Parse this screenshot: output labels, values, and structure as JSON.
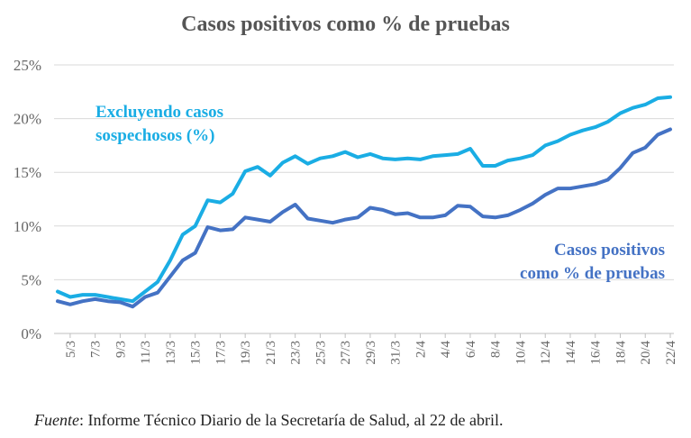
{
  "chart_data": {
    "type": "line",
    "title": "Casos positivos como % de pruebas",
    "xlabel": "",
    "ylabel": "",
    "ylim": [
      0,
      25
    ],
    "y_ticks": [
      "0%",
      "5%",
      "10%",
      "15%",
      "20%",
      "25%"
    ],
    "grid": "horizontal",
    "x": [
      "4/3",
      "5/3",
      "6/3",
      "7/3",
      "8/3",
      "9/3",
      "10/3",
      "11/3",
      "12/3",
      "13/3",
      "14/3",
      "15/3",
      "16/3",
      "17/3",
      "18/3",
      "19/3",
      "20/3",
      "21/3",
      "22/3",
      "23/3",
      "24/3",
      "25/3",
      "26/3",
      "27/3",
      "28/3",
      "29/3",
      "30/3",
      "31/3",
      "1/4",
      "2/4",
      "3/4",
      "4/4",
      "5/4",
      "6/4",
      "7/4",
      "8/4",
      "9/4",
      "10/4",
      "11/4",
      "12/4",
      "13/4",
      "14/4",
      "15/4",
      "16/4",
      "17/4",
      "18/4",
      "19/4",
      "20/4",
      "21/4",
      "22/4"
    ],
    "x_tick_labels": [
      "5/3",
      "7/3",
      "9/3",
      "11/3",
      "13/3",
      "15/3",
      "17/3",
      "19/3",
      "21/3",
      "23/3",
      "25/3",
      "27/3",
      "29/3",
      "31/3",
      "2/4",
      "4/4",
      "6/4",
      "8/4",
      "10/4",
      "12/4",
      "14/4",
      "16/4",
      "18/4",
      "20/4",
      "22/4"
    ],
    "series": [
      {
        "name": "Excluyendo casos sospechosos (%)",
        "label_lines": [
          "Excluyendo casos",
          "sospechosos (%)"
        ],
        "color": "#1AADE4",
        "values": [
          3.9,
          3.4,
          3.6,
          3.6,
          3.4,
          3.2,
          3.0,
          3.9,
          4.8,
          6.8,
          9.2,
          10.0,
          12.4,
          12.2,
          13.0,
          15.1,
          15.5,
          14.7,
          15.9,
          16.5,
          15.8,
          16.3,
          16.5,
          16.9,
          16.4,
          16.7,
          16.3,
          16.2,
          16.3,
          16.2,
          16.5,
          16.6,
          16.7,
          17.2,
          15.6,
          15.6,
          16.1,
          16.3,
          16.6,
          17.5,
          17.9,
          18.5,
          18.9,
          19.2,
          19.7,
          20.5,
          21.0,
          21.3,
          21.9,
          22.0
        ]
      },
      {
        "name": "Casos positivos como % de pruebas",
        "label_lines": [
          "Casos positivos",
          "como % de pruebas"
        ],
        "color": "#4472C4",
        "values": [
          3.0,
          2.7,
          3.0,
          3.2,
          3.0,
          2.9,
          2.5,
          3.4,
          3.8,
          5.3,
          6.8,
          7.5,
          9.9,
          9.6,
          9.7,
          10.8,
          10.6,
          10.4,
          11.3,
          12.0,
          10.7,
          10.5,
          10.3,
          10.6,
          10.8,
          11.7,
          11.5,
          11.1,
          11.2,
          10.8,
          10.8,
          11.0,
          11.9,
          11.8,
          10.9,
          10.8,
          11.0,
          11.5,
          12.1,
          12.9,
          13.5,
          13.5,
          13.7,
          13.9,
          14.3,
          15.4,
          16.8,
          17.3,
          18.5,
          19.0
        ]
      }
    ]
  },
  "source_note": {
    "label": "Fuente",
    "text": ": Informe Técnico Diario de la Secretaría de Salud, al 22 de abril."
  }
}
